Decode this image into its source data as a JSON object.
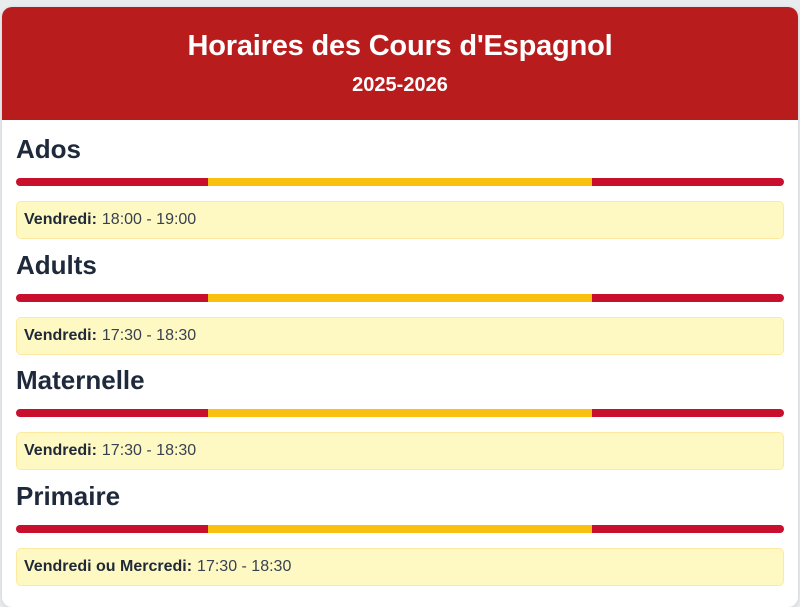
{
  "header": {
    "title": "Horaires des Cours d'Espagnol",
    "subtitle": "2025-2026"
  },
  "colors": {
    "header_bg": "#b91c1c",
    "flag_red": "#c8102e",
    "flag_yellow": "#fbbf0f",
    "schedule_bg": "#fef9c3"
  },
  "sections": [
    {
      "title": "Ados",
      "day": "Vendredi:",
      "time": "18:00 - 19:00"
    },
    {
      "title": "Adults",
      "day": "Vendredi:",
      "time": "17:30 - 18:30"
    },
    {
      "title": "Maternelle",
      "day": "Vendredi:",
      "time": "17:30 - 18:30"
    },
    {
      "title": "Primaire",
      "day": "Vendredi ou Mercredi:",
      "time": "17:30 - 18:30"
    }
  ]
}
